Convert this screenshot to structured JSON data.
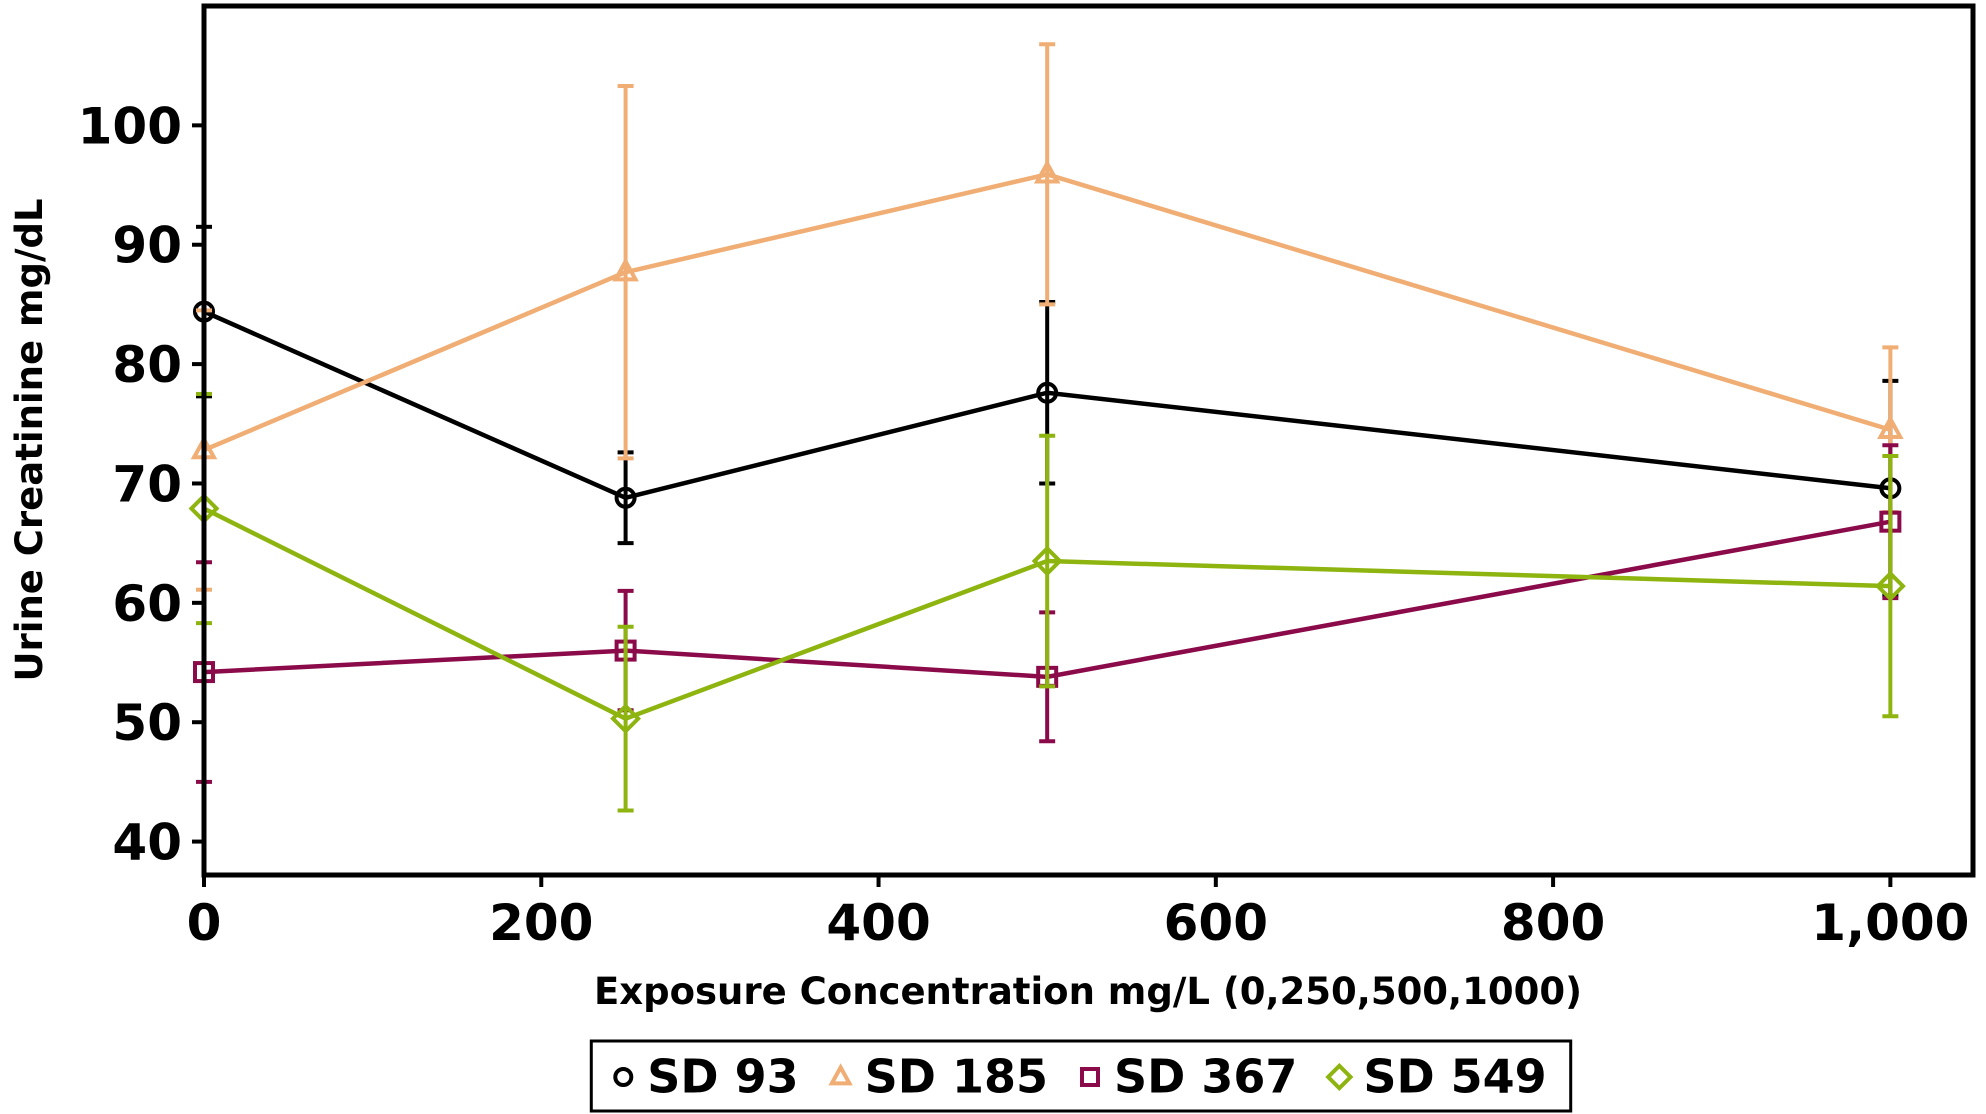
{
  "chart_data": {
    "type": "line",
    "x_label": "Exposure Concentration mg/L (0,250,500,1000)",
    "y_label": "Urine Creatinine mg/dL",
    "x": [
      0,
      250,
      500,
      1000
    ],
    "xlim": [
      0,
      1049
    ],
    "ylim": [
      37.2,
      110
    ],
    "xticks": [
      0,
      200,
      400,
      600,
      800,
      {
        "value": 1000,
        "label": "1,000"
      }
    ],
    "yticks": [
      40,
      50,
      60,
      70,
      80,
      90,
      100
    ],
    "grid": false,
    "legend": "bottom",
    "series": [
      {
        "name": "SD 93",
        "color": "#000000",
        "marker": "circle",
        "values": [
          84.4,
          68.8,
          77.6,
          69.6
        ],
        "errors": [
          7.1,
          3.8,
          7.6,
          9.0
        ]
      },
      {
        "name": "SD 185",
        "color": "#f0ad74",
        "marker": "triangle",
        "values": [
          72.8,
          87.7,
          95.9,
          74.5
        ],
        "errors": [
          11.7,
          15.6,
          10.9,
          6.9
        ]
      },
      {
        "name": "SD 367",
        "color": "#8b0a4a",
        "marker": "square",
        "values": [
          54.2,
          56.0,
          53.8,
          66.8
        ],
        "errors": [
          9.2,
          5.0,
          5.4,
          6.4
        ]
      },
      {
        "name": "SD 549",
        "color": "#8db40f",
        "marker": "diamond",
        "values": [
          67.9,
          50.3,
          63.5,
          61.4
        ],
        "errors": [
          9.6,
          7.7,
          10.5,
          10.9
        ]
      }
    ]
  }
}
